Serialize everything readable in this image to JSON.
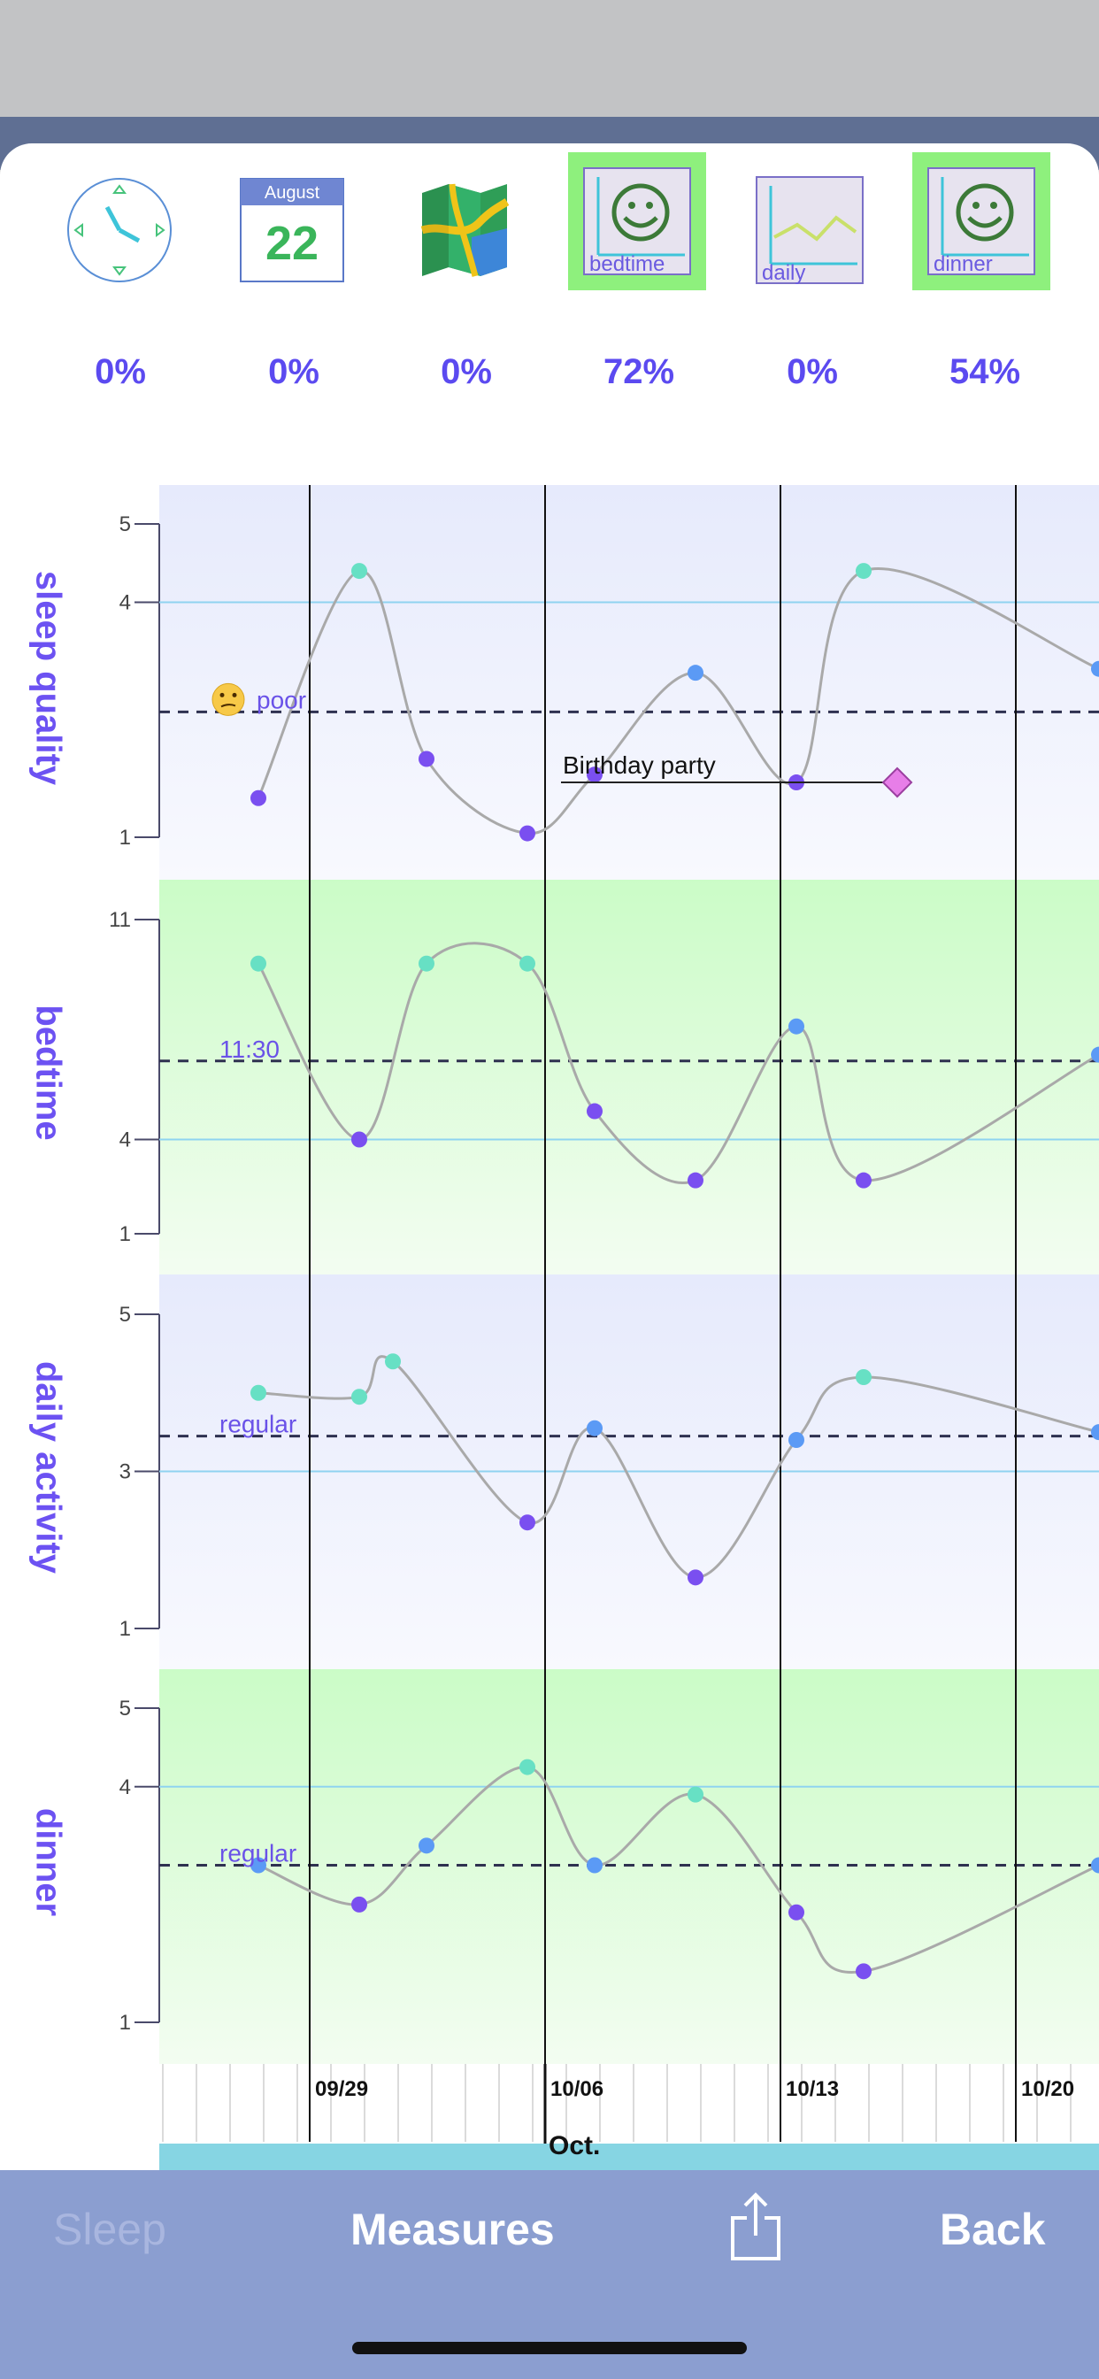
{
  "toolbar": {
    "calendar": {
      "month": "August",
      "day": "22"
    },
    "bedtime_label": "bedtime",
    "daily_label": "daily",
    "dinner_label": "dinner",
    "percents": [
      "0%",
      "0%",
      "0%",
      "72%",
      "0%",
      "54%"
    ],
    "icons": [
      "clock-icon",
      "calendar-icon",
      "map-icon",
      "bedtime-chart-icon",
      "daily-chart-icon",
      "dinner-chart-icon"
    ],
    "highlight_color": "#8ef07d"
  },
  "bottom_bar": {
    "sleep": "Sleep",
    "measures": "Measures",
    "share": "share-icon",
    "back": "Back"
  },
  "chart_data": [
    {
      "type": "line",
      "title": "sleep quality",
      "ylim": [
        1,
        5
      ],
      "yticks": [
        "1",
        "4",
        "5"
      ],
      "reference": {
        "label": "poor",
        "value": 2.6,
        "icon": "confused-face-icon"
      },
      "annotation": {
        "label": "Birthday party"
      },
      "points": [
        {
          "x": "09/27",
          "y": 1.5
        },
        {
          "x": "09/30",
          "y": 4.4
        },
        {
          "x": "10/02",
          "y": 2.0
        },
        {
          "x": "10/05",
          "y": 1.05
        },
        {
          "x": "10/07",
          "y": 1.8
        },
        {
          "x": "10/10",
          "y": 3.1
        },
        {
          "x": "10/13",
          "y": 1.7
        },
        {
          "x": "10/15",
          "y": 4.4
        },
        {
          "x": "10/22",
          "y": 3.15
        }
      ]
    },
    {
      "type": "line",
      "title": "bedtime",
      "ylim": [
        1,
        11
      ],
      "yticks": [
        "1",
        "4",
        "11"
      ],
      "reference": {
        "label": "11:30",
        "value": 6.5
      },
      "points": [
        {
          "x": "09/27",
          "y": 9.6
        },
        {
          "x": "09/30",
          "y": 4.0
        },
        {
          "x": "10/02",
          "y": 9.6
        },
        {
          "x": "10/05",
          "y": 9.6
        },
        {
          "x": "10/07",
          "y": 4.9
        },
        {
          "x": "10/10",
          "y": 2.7
        },
        {
          "x": "10/13",
          "y": 7.6
        },
        {
          "x": "10/15",
          "y": 2.7
        },
        {
          "x": "10/22",
          "y": 6.7
        }
      ]
    },
    {
      "type": "line",
      "title": "daily activity",
      "ylim": [
        1,
        5
      ],
      "yticks": [
        "1",
        "3",
        "5"
      ],
      "reference": {
        "label": "regular",
        "value": 3.45
      },
      "points": [
        {
          "x": "09/27",
          "y": 4.0
        },
        {
          "x": "09/30",
          "y": 3.95
        },
        {
          "x": "10/01",
          "y": 4.4
        },
        {
          "x": "10/05",
          "y": 2.35
        },
        {
          "x": "10/07",
          "y": 3.55
        },
        {
          "x": "10/10",
          "y": 1.65
        },
        {
          "x": "10/13",
          "y": 3.4
        },
        {
          "x": "10/15",
          "y": 4.2
        },
        {
          "x": "10/22",
          "y": 3.5
        }
      ]
    },
    {
      "type": "line",
      "title": "dinner",
      "ylim": [
        1,
        5
      ],
      "yticks": [
        "1",
        "4",
        "5"
      ],
      "reference": {
        "label": "regular",
        "value": 3.0
      },
      "points": [
        {
          "x": "09/27",
          "y": 3.0
        },
        {
          "x": "09/30",
          "y": 2.5
        },
        {
          "x": "10/02",
          "y": 3.25
        },
        {
          "x": "10/05",
          "y": 4.25
        },
        {
          "x": "10/07",
          "y": 3.0
        },
        {
          "x": "10/10",
          "y": 3.9
        },
        {
          "x": "10/13",
          "y": 2.4
        },
        {
          "x": "10/15",
          "y": 1.65
        },
        {
          "x": "10/22",
          "y": 3.0
        }
      ]
    }
  ],
  "x_axis": {
    "date_labels": [
      "09/29",
      "10/06",
      "10/13",
      "10/20"
    ],
    "month_label": "Oct."
  }
}
